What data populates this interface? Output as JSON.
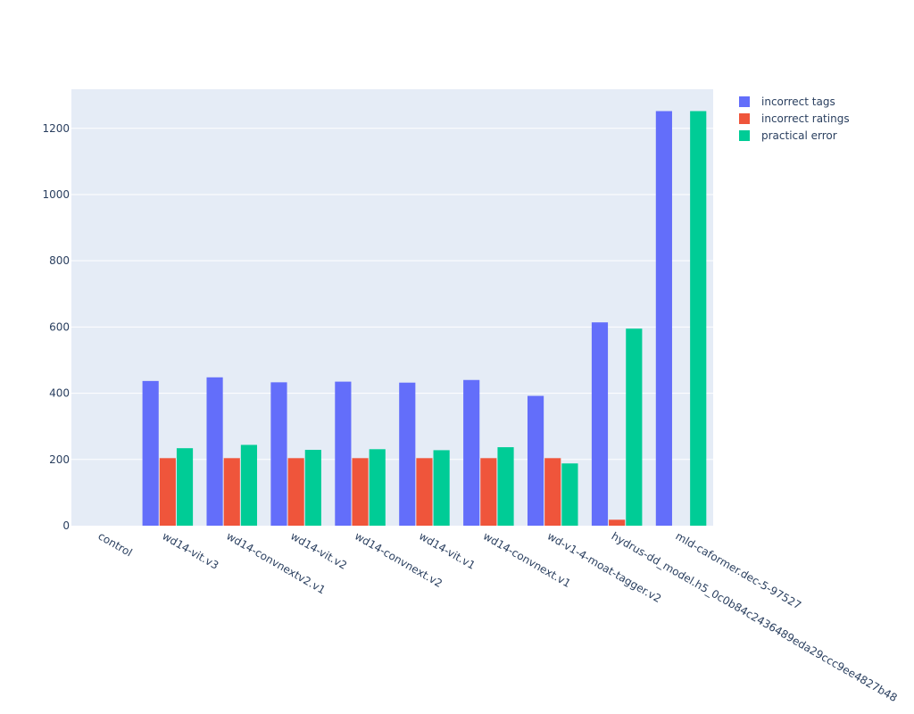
{
  "chart_data": {
    "type": "bar",
    "categories": [
      "control",
      "wd14-vit.v3",
      "wd14-convnextv2.v1",
      "wd14-vit.v2",
      "wd14-convnext.v2",
      "wd14-vit.v1",
      "wd14-convnext.v1",
      "wd-v1-4-moat-tagger.v2",
      "hydrus-dd_model.h5_0c0b84c2436489eda29ccc9ee4827b48",
      "mld-caformer.dec-5-97527"
    ],
    "series": [
      {
        "name": "incorrect tags",
        "color": "#636efa",
        "values": [
          0,
          437,
          448,
          433,
          435,
          432,
          440,
          392,
          614,
          1252
        ]
      },
      {
        "name": "incorrect ratings",
        "color": "#EF553B",
        "values": [
          0,
          204,
          204,
          204,
          204,
          204,
          204,
          204,
          18,
          0
        ]
      },
      {
        "name": "practical error",
        "color": "#00cc96",
        "values": [
          0,
          234,
          244,
          229,
          231,
          228,
          237,
          188,
          595,
          1252
        ]
      }
    ],
    "yticks": [
      0,
      200,
      400,
      600,
      800,
      1000,
      1200
    ],
    "ylim": [
      0,
      1318
    ],
    "grid": true,
    "legend_position": "top-right",
    "plot_bg": "#E5ECF6",
    "title": "",
    "xlabel": "",
    "ylabel": ""
  }
}
